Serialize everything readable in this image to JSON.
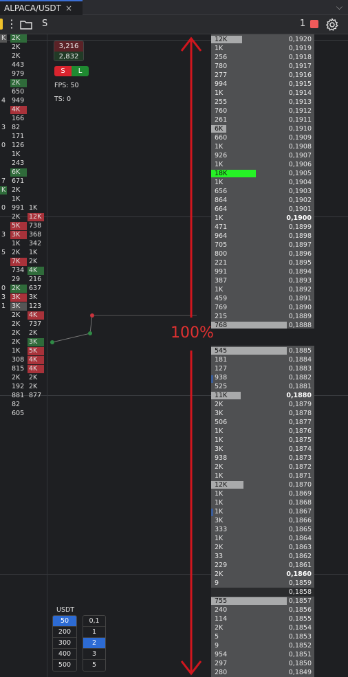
{
  "tab": {
    "title": "ALPACA/USDT",
    "close": "×",
    "chevron": "⌵"
  },
  "toolbar": {
    "symbol": "S",
    "count": "1",
    "dots": "⋮"
  },
  "info": {
    "price_up": "3,216",
    "price_down": "2,832",
    "sell": "S",
    "long": "L",
    "fps": "FPS: 50",
    "ts": "TS: 0"
  },
  "colors": {
    "buy": "#2f6b3a",
    "sell": "#a8323a",
    "highlight": "#26f226",
    "arrow": "#e03131",
    "selected": "#2d6bd3"
  },
  "leftcol": [
    {
      "t": "K",
      "c": "gr"
    },
    {
      "t": "",
      "c": ""
    },
    {
      "t": "",
      "c": ""
    },
    {
      "t": "",
      "c": ""
    },
    {
      "t": "",
      "c": ""
    },
    {
      "t": "",
      "c": ""
    },
    {
      "t": "",
      "c": ""
    },
    {
      "t": "4",
      "c": ""
    },
    {
      "t": "",
      "c": ""
    },
    {
      "t": "",
      "c": ""
    },
    {
      "t": "3",
      "c": ""
    },
    {
      "t": "",
      "c": ""
    },
    {
      "t": "0",
      "c": ""
    },
    {
      "t": "",
      "c": ""
    },
    {
      "t": "",
      "c": ""
    },
    {
      "t": "",
      "c": ""
    },
    {
      "t": "7",
      "c": ""
    },
    {
      "t": "K",
      "c": "g"
    },
    {
      "t": "",
      "c": ""
    },
    {
      "t": "0",
      "c": ""
    },
    {
      "t": "",
      "c": ""
    },
    {
      "t": "",
      "c": ""
    },
    {
      "t": "3",
      "c": ""
    },
    {
      "t": "",
      "c": ""
    },
    {
      "t": "5",
      "c": ""
    },
    {
      "t": "",
      "c": ""
    },
    {
      "t": "",
      "c": ""
    },
    {
      "t": "",
      "c": ""
    },
    {
      "t": "0",
      "c": ""
    },
    {
      "t": "3",
      "c": ""
    },
    {
      "t": "1",
      "c": ""
    },
    {
      "t": "",
      "c": ""
    }
  ],
  "col1": [
    {
      "t": "2K",
      "c": "g"
    },
    {
      "t": "2K",
      "c": ""
    },
    {
      "t": "2K",
      "c": ""
    },
    {
      "t": "443",
      "c": ""
    },
    {
      "t": "979",
      "c": ""
    },
    {
      "t": "2K",
      "c": "g"
    },
    {
      "t": "650",
      "c": ""
    },
    {
      "t": "949",
      "c": ""
    },
    {
      "t": "4K",
      "c": "r"
    },
    {
      "t": "166",
      "c": ""
    },
    {
      "t": "82",
      "c": ""
    },
    {
      "t": "171",
      "c": ""
    },
    {
      "t": "126",
      "c": ""
    },
    {
      "t": "1K",
      "c": ""
    },
    {
      "t": "243",
      "c": ""
    },
    {
      "t": "6K",
      "c": "g"
    },
    {
      "t": "671",
      "c": ""
    },
    {
      "t": "2K",
      "c": ""
    },
    {
      "t": "1K",
      "c": ""
    },
    {
      "t": "991",
      "c": ""
    },
    {
      "t": "2K",
      "c": ""
    },
    {
      "t": "5K",
      "c": "r"
    },
    {
      "t": "3K",
      "c": "r"
    },
    {
      "t": "1K",
      "c": ""
    },
    {
      "t": "2K",
      "c": ""
    },
    {
      "t": "7K",
      "c": "r"
    },
    {
      "t": "734",
      "c": ""
    },
    {
      "t": "29",
      "c": ""
    },
    {
      "t": "2K",
      "c": "g"
    },
    {
      "t": "3K",
      "c": "r"
    },
    {
      "t": "3K",
      "c": "gr"
    },
    {
      "t": "2K",
      "c": ""
    },
    {
      "t": "2K",
      "c": ""
    },
    {
      "t": "2K",
      "c": ""
    },
    {
      "t": "2K",
      "c": ""
    },
    {
      "t": "1K",
      "c": ""
    },
    {
      "t": "308",
      "c": ""
    },
    {
      "t": "815",
      "c": ""
    },
    {
      "t": "2K",
      "c": ""
    },
    {
      "t": "192",
      "c": ""
    },
    {
      "t": "881",
      "c": ""
    },
    {
      "t": "82",
      "c": ""
    },
    {
      "t": "605",
      "c": ""
    }
  ],
  "col2": [
    {
      "t": "1K",
      "c": ""
    },
    {
      "t": "12K",
      "c": "r"
    },
    {
      "t": "738",
      "c": ""
    },
    {
      "t": "368",
      "c": ""
    },
    {
      "t": "342",
      "c": ""
    },
    {
      "t": "1K",
      "c": ""
    },
    {
      "t": "2K",
      "c": ""
    },
    {
      "t": "4K",
      "c": "g"
    },
    {
      "t": "216",
      "c": ""
    },
    {
      "t": "637",
      "c": ""
    },
    {
      "t": "3K",
      "c": ""
    },
    {
      "t": "123",
      "c": ""
    },
    {
      "t": "4K",
      "c": "r"
    },
    {
      "t": "737",
      "c": ""
    },
    {
      "t": "2K",
      "c": ""
    },
    {
      "t": "3K",
      "c": "g"
    },
    {
      "t": "5K",
      "c": "r"
    },
    {
      "t": "4K",
      "c": "r"
    },
    {
      "t": "4K",
      "c": "r"
    },
    {
      "t": "2K",
      "c": ""
    },
    {
      "t": "2K",
      "c": ""
    },
    {
      "t": "877",
      "c": ""
    }
  ],
  "orderbook_top": [
    {
      "v": "12K",
      "p": "0,1920",
      "w": 45
    },
    {
      "v": "1K",
      "p": "0,1919",
      "w": 0
    },
    {
      "v": "256",
      "p": "0,1918",
      "w": 0
    },
    {
      "v": "780",
      "p": "0,1917",
      "w": 0
    },
    {
      "v": "277",
      "p": "0,1916",
      "w": 0
    },
    {
      "v": "994",
      "p": "0,1915",
      "w": 0
    },
    {
      "v": "1K",
      "p": "0,1914",
      "w": 0
    },
    {
      "v": "255",
      "p": "0,1913",
      "w": 0
    },
    {
      "v": "760",
      "p": "0,1912",
      "w": 0
    },
    {
      "v": "261",
      "p": "0,1911",
      "w": 0
    },
    {
      "v": "6K",
      "p": "0,1910",
      "w": 22
    },
    {
      "v": "660",
      "p": "0,1909",
      "w": 0
    },
    {
      "v": "1K",
      "p": "0,1908",
      "w": 0
    },
    {
      "v": "926",
      "p": "0,1907",
      "w": 0
    },
    {
      "v": "1K",
      "p": "0,1906",
      "w": 0
    },
    {
      "v": "18K",
      "p": "0,1905",
      "w": 65,
      "hl": true
    },
    {
      "v": "1K",
      "p": "0,1904",
      "w": 0
    },
    {
      "v": "656",
      "p": "0,1903",
      "w": 0
    },
    {
      "v": "864",
      "p": "0,1902",
      "w": 0
    },
    {
      "v": "664",
      "p": "0,1901",
      "w": 0
    },
    {
      "v": "1K",
      "p": "0,1900",
      "w": 0,
      "bold": true
    },
    {
      "v": "471",
      "p": "0,1899",
      "w": 0
    },
    {
      "v": "964",
      "p": "0,1898",
      "w": 0
    },
    {
      "v": "705",
      "p": "0,1897",
      "w": 0
    },
    {
      "v": "800",
      "p": "0,1896",
      "w": 0
    },
    {
      "v": "221",
      "p": "0,1895",
      "w": 0
    },
    {
      "v": "991",
      "p": "0,1894",
      "w": 0
    },
    {
      "v": "387",
      "p": "0,1893",
      "w": 0
    },
    {
      "v": "1K",
      "p": "0,1892",
      "w": 0
    },
    {
      "v": "459",
      "p": "0,1891",
      "w": 0
    },
    {
      "v": "769",
      "p": "0,1890",
      "w": 0
    },
    {
      "v": "215",
      "p": "0,1889",
      "w": 0
    },
    {
      "v": "768",
      "p": "0,1888",
      "w": 110
    }
  ],
  "orderbook_bottom": [
    {
      "v": "545",
      "p": "0,1885",
      "w": 110
    },
    {
      "v": "181",
      "p": "0,1884",
      "w": 0
    },
    {
      "v": "127",
      "p": "0,1883",
      "w": 0
    },
    {
      "v": "938",
      "p": "0,1882",
      "w": 0
    },
    {
      "v": "525",
      "p": "0,1881",
      "w": 0
    },
    {
      "v": "11K",
      "p": "0,1880",
      "w": 43,
      "bold": true
    },
    {
      "v": "2K",
      "p": "0,1879",
      "w": 0
    },
    {
      "v": "3K",
      "p": "0,1878",
      "w": 0
    },
    {
      "v": "506",
      "p": "0,1877",
      "w": 0
    },
    {
      "v": "1K",
      "p": "0,1876",
      "w": 0
    },
    {
      "v": "1K",
      "p": "0,1875",
      "w": 0
    },
    {
      "v": "3K",
      "p": "0,1874",
      "w": 0
    },
    {
      "v": "938",
      "p": "0,1873",
      "w": 0
    },
    {
      "v": "2K",
      "p": "0,1872",
      "w": 0
    },
    {
      "v": "1K",
      "p": "0,1871",
      "w": 0
    },
    {
      "v": "12K",
      "p": "0,1870",
      "w": 47
    },
    {
      "v": "1K",
      "p": "0,1869",
      "w": 0
    },
    {
      "v": "1K",
      "p": "0,1868",
      "w": 0
    },
    {
      "v": "1K",
      "p": "0,1867",
      "w": 0
    },
    {
      "v": "3K",
      "p": "0,1866",
      "w": 0
    },
    {
      "v": "333",
      "p": "0,1865",
      "w": 0
    },
    {
      "v": "1K",
      "p": "0,1864",
      "w": 0
    },
    {
      "v": "2K",
      "p": "0,1863",
      "w": 0
    },
    {
      "v": "33",
      "p": "0,1862",
      "w": 0
    },
    {
      "v": "229",
      "p": "0,1861",
      "w": 0
    },
    {
      "v": "2K",
      "p": "0,1860",
      "w": 0,
      "bold": true
    },
    {
      "v": "9",
      "p": "0,1859",
      "w": 0
    }
  ],
  "orderbook_mid_price": "0,1858",
  "orderbook_tail": [
    {
      "v": "755",
      "p": "0,1857",
      "w": 110
    },
    {
      "v": "240",
      "p": "0,1856",
      "w": 0
    },
    {
      "v": "114",
      "p": "0,1855",
      "w": 0
    },
    {
      "v": "2K",
      "p": "0,1854",
      "w": 0
    },
    {
      "v": "5",
      "p": "0,1853",
      "w": 0
    },
    {
      "v": "9",
      "p": "0,1852",
      "w": 0
    },
    {
      "v": "954",
      "p": "0,1851",
      "w": 0
    },
    {
      "v": "297",
      "p": "0,1850",
      "w": 0
    },
    {
      "v": "280",
      "p": "0,1849",
      "w": 0
    }
  ],
  "annotation": {
    "percent": "100%"
  },
  "usdt": {
    "label": "USDT",
    "amounts": [
      "50",
      "200",
      "300",
      "400",
      "500"
    ],
    "amount_selected": 0,
    "multipliers": [
      "0,1",
      "1",
      "2",
      "3",
      "5"
    ],
    "multiplier_selected": 2
  }
}
